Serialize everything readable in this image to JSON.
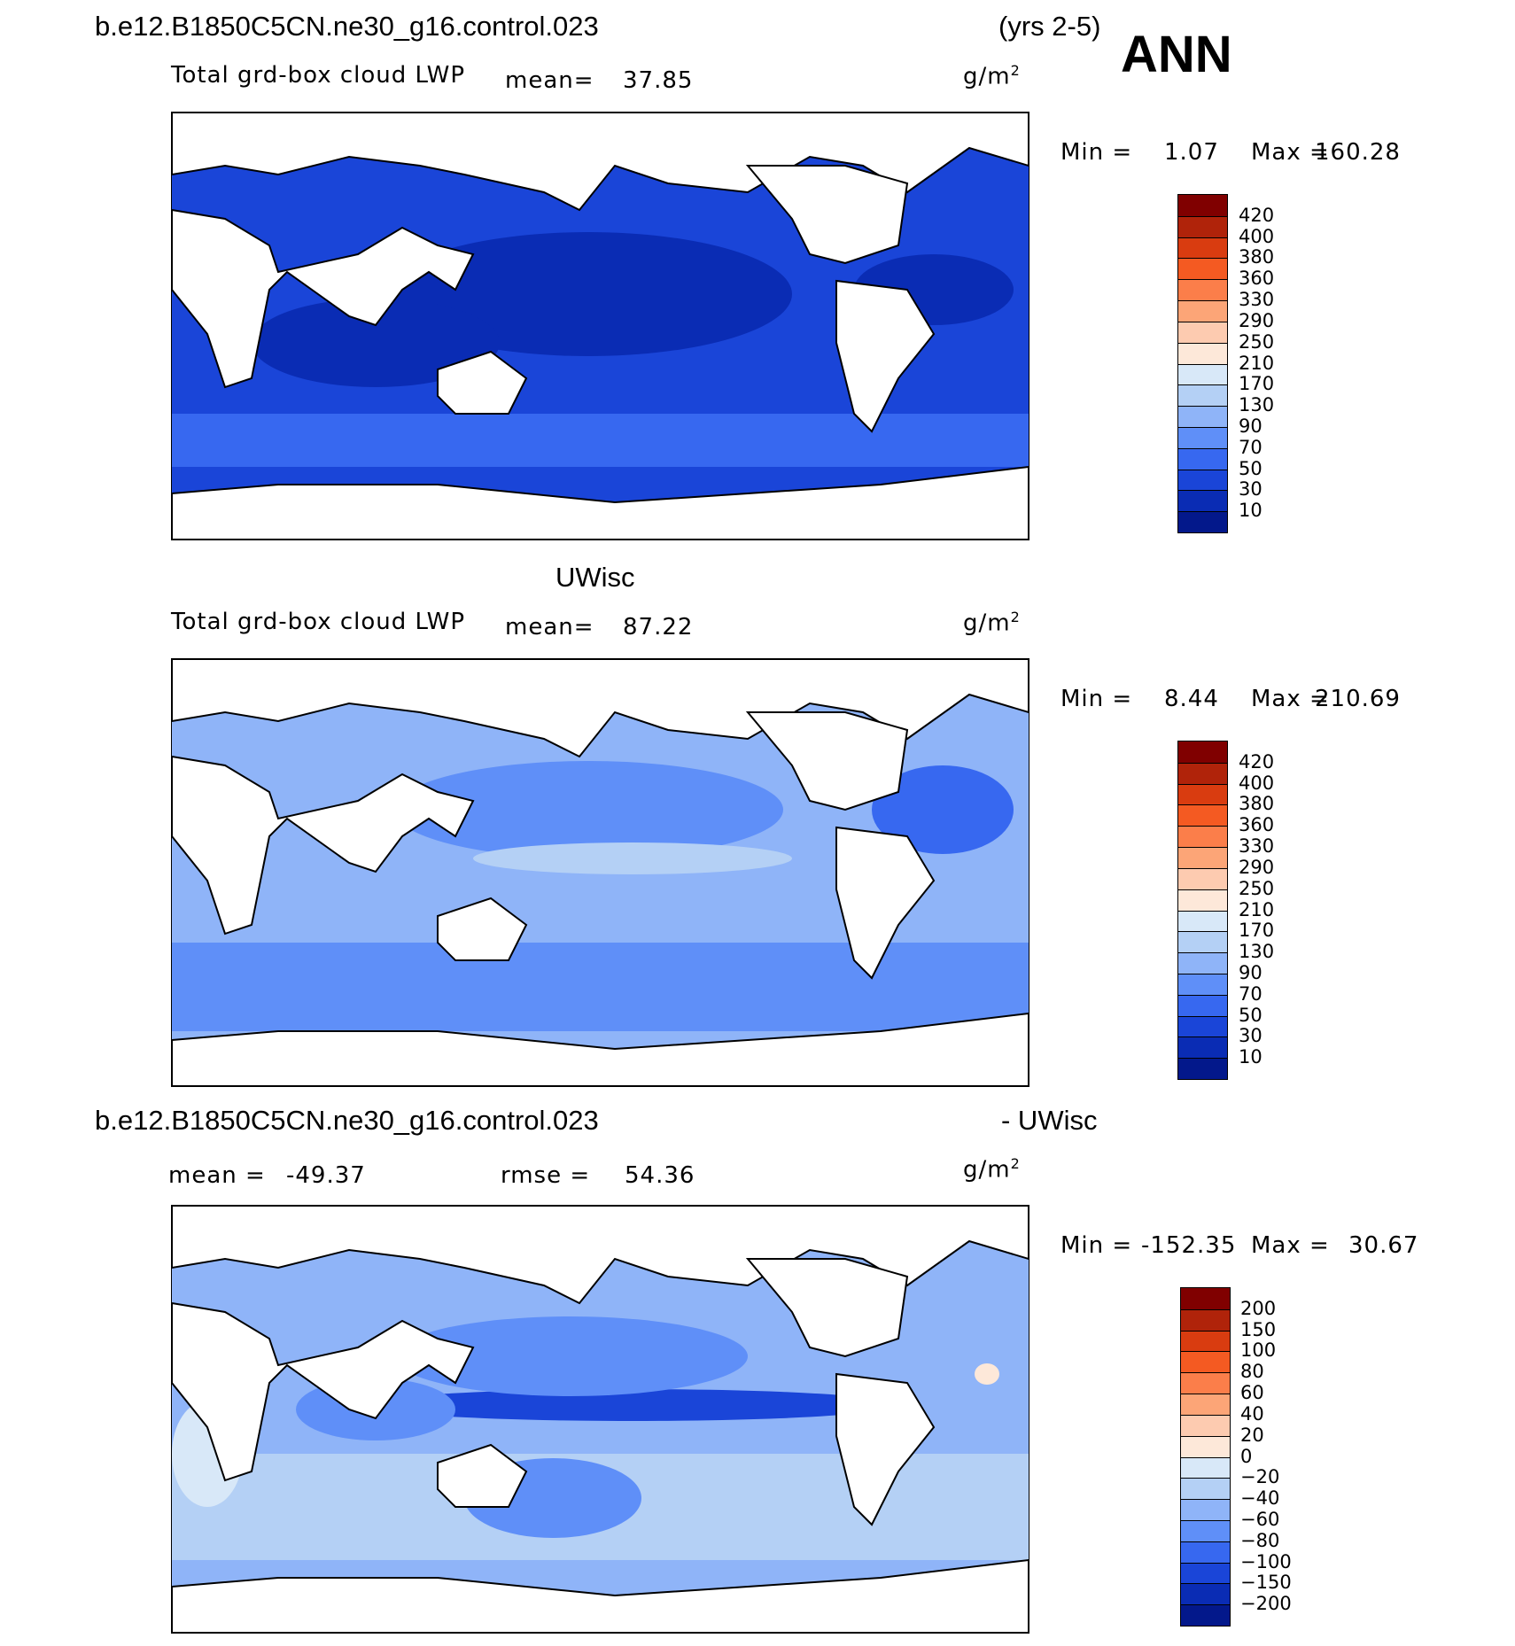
{
  "header": {
    "case_name": "b.e12.B1850C5CN.ne30_g16.control.023",
    "years": "(yrs 2-5)",
    "season": "ANN",
    "obs_name": "UWisc",
    "diff_suffix": "- UWisc"
  },
  "panels": [
    {
      "variable": "Total grd-box cloud LWP",
      "mean_label": "mean=",
      "mean_value": "37.85",
      "units_base": "g/m",
      "units_exp": "2",
      "stats": {
        "min_label": "Min =",
        "min_value": "1.07",
        "max_label": "Max =",
        "max_value": "160.28"
      },
      "colorbar": {
        "labels": [
          "420",
          "400",
          "380",
          "360",
          "330",
          "290",
          "250",
          "210",
          "170",
          "130",
          "90",
          "70",
          "50",
          "30",
          "10"
        ],
        "colors": [
          "#800000",
          "#b0230a",
          "#d93c10",
          "#f45a22",
          "#fb7e4a",
          "#fca577",
          "#fdcbb0",
          "#fde8d9",
          "#d8e8f8",
          "#b4d0f5",
          "#8fb4f8",
          "#5f8ff8",
          "#3768f0",
          "#1a45d8",
          "#0a2cb4",
          "#03188b"
        ]
      }
    },
    {
      "variable": "Total grd-box cloud LWP",
      "mean_label": "mean=",
      "mean_value": "87.22",
      "units_base": "g/m",
      "units_exp": "2",
      "stats": {
        "min_label": "Min =",
        "min_value": "8.44",
        "max_label": "Max =",
        "max_value": "210.69"
      },
      "colorbar": {
        "labels": [
          "420",
          "400",
          "380",
          "360",
          "330",
          "290",
          "250",
          "210",
          "170",
          "130",
          "90",
          "70",
          "50",
          "30",
          "10"
        ],
        "colors": [
          "#800000",
          "#b0230a",
          "#d93c10",
          "#f45a22",
          "#fb7e4a",
          "#fca577",
          "#fdcbb0",
          "#fde8d9",
          "#d8e8f8",
          "#b4d0f5",
          "#8fb4f8",
          "#5f8ff8",
          "#3768f0",
          "#1a45d8",
          "#0a2cb4",
          "#03188b"
        ]
      }
    },
    {
      "mean_label": "mean =",
      "mean_value": "-49.37",
      "rmse_label": "rmse =",
      "rmse_value": "54.36",
      "units_base": "g/m",
      "units_exp": "2",
      "stats": {
        "min_label": "Min =",
        "min_value": "-152.35",
        "max_label": "Max =",
        "max_value": "30.67"
      },
      "colorbar": {
        "labels": [
          "200",
          "150",
          "100",
          "80",
          "60",
          "40",
          "20",
          "0",
          "-20",
          "-40",
          "-60",
          "-80",
          "-100",
          "-150",
          "-200"
        ],
        "colors": [
          "#800000",
          "#b0230a",
          "#d93c10",
          "#f45a22",
          "#fb7e4a",
          "#fca577",
          "#fdcbb0",
          "#fde8d9",
          "#d8e8f8",
          "#b4d0f5",
          "#8fb4f8",
          "#5f8ff8",
          "#3768f0",
          "#1a45d8",
          "#0a2cb4",
          "#03188b"
        ]
      }
    }
  ],
  "map_colors": {
    "land": "#ffffff",
    "coast": "#000000",
    "p1_base": "#1a45d8",
    "p1_deep": "#0a2cb4",
    "p1_light": "#3768f0",
    "p2_base": "#8fb4f8",
    "p2_mid": "#5f8ff8",
    "p2_dark": "#3768f0",
    "p2_light": "#b4d0f5",
    "p3_base": "#8fb4f8",
    "p3_light": "#b4d0f5",
    "p3_pale": "#d8e8f8",
    "p3_dark": "#5f8ff8",
    "p3_deep": "#1a45d8",
    "p3_warm": "#fde8d9"
  }
}
